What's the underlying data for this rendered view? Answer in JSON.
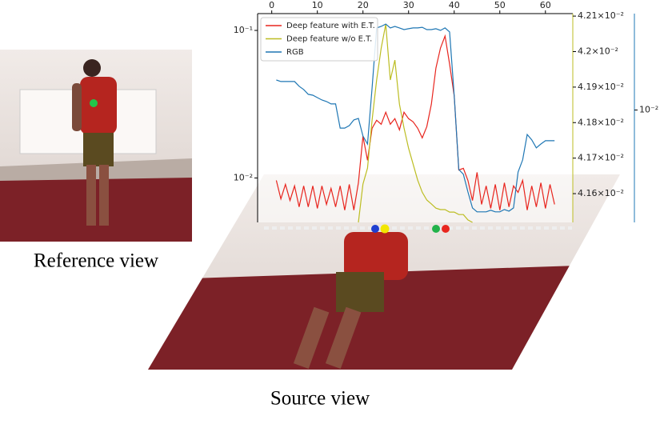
{
  "figure": {
    "reference_caption": "Reference view",
    "source_caption": "Source view"
  },
  "chart_data": {
    "type": "line",
    "legend": "upper left",
    "log_y": true,
    "log_y3": true,
    "x": [
      1,
      2,
      3,
      4,
      5,
      6,
      7,
      8,
      9,
      10,
      11,
      12,
      13,
      14,
      15,
      16,
      17,
      18,
      19,
      20,
      21,
      22,
      23,
      24,
      25,
      26,
      27,
      28,
      29,
      30,
      31,
      32,
      33,
      34,
      35,
      36,
      37,
      38,
      39,
      40,
      41,
      42,
      43,
      44,
      45,
      46,
      47,
      48,
      49,
      50,
      51,
      52,
      53,
      54,
      55,
      56,
      57,
      58,
      59,
      60,
      61,
      62
    ],
    "xlim": [
      -3.1,
      66
    ],
    "xticks": [
      0,
      10,
      20,
      30,
      40,
      50,
      60
    ],
    "ylim": [
      0.005,
      0.13
    ],
    "yticks": [
      {
        "value": 0.1,
        "label": "10⁻¹"
      },
      {
        "value": 0.01,
        "label": "10⁻²"
      }
    ],
    "y2lim": [
      0.041519,
      0.042107
    ],
    "y2ticks": [
      {
        "value": 0.0416,
        "label": "4.16×10⁻²"
      },
      {
        "value": 0.0417,
        "label": "4.17×10⁻²"
      },
      {
        "value": 0.0418,
        "label": "4.18×10⁻²"
      },
      {
        "value": 0.0419,
        "label": "4.19×10⁻²"
      },
      {
        "value": 0.042,
        "label": "4.2×10⁻²"
      },
      {
        "value": 0.0421,
        "label": "4.21×10⁻²"
      }
    ],
    "y3lim": [
      0.0095,
      0.01045
    ],
    "y3ticks": [
      {
        "value": 0.01,
        "label": "10⁻²"
      }
    ],
    "series": [
      {
        "name": "Deep feature with E.T.",
        "color": "#e8251e",
        "axis": "y",
        "values": [
          0.00963,
          0.00722,
          0.00905,
          0.00704,
          0.00883,
          0.00637,
          0.00883,
          0.00637,
          0.00883,
          0.00622,
          0.00883,
          0.00662,
          0.0085,
          0.00637,
          0.00883,
          0.00606,
          0.00905,
          0.00606,
          0.00928,
          0.01917,
          0.01317,
          0.02173,
          0.02462,
          0.02312,
          0.0279,
          0.02312,
          0.02525,
          0.02119,
          0.0279,
          0.02525,
          0.02401,
          0.02173,
          0.01869,
          0.02228,
          0.03162,
          0.05553,
          0.07596,
          0.09162,
          0.0591,
          0.03583,
          0.01133,
          0.01162,
          0.00963,
          0.00704,
          0.01091,
          0.00662,
          0.00883,
          0.00622,
          0.00905,
          0.00606,
          0.00928,
          0.00637,
          0.00883,
          0.00798,
          0.00963,
          0.00606,
          0.00883,
          0.00637,
          0.00928,
          0.00622,
          0.00905,
          0.00662
        ]
      },
      {
        "name": "Deep feature w/o E.T.",
        "color": "#bcbd22",
        "axis": "y2",
        "values": [
          null,
          null,
          null,
          null,
          null,
          null,
          null,
          null,
          null,
          null,
          null,
          null,
          null,
          null,
          null,
          null,
          null,
          null,
          0.041519,
          0.041627,
          0.041672,
          0.041807,
          0.04192,
          0.04201,
          0.042077,
          0.04192,
          0.041976,
          0.041852,
          0.041785,
          0.041728,
          0.041683,
          0.041638,
          0.041604,
          0.041582,
          0.041571,
          0.041559,
          0.041555,
          0.041555,
          0.041548,
          0.041548,
          0.041541,
          0.041541,
          0.041526,
          0.041519,
          null,
          null,
          null,
          null,
          null,
          null,
          null,
          null,
          null,
          null,
          null,
          null,
          null,
          null,
          null,
          null,
          null,
          null
        ]
      },
      {
        "name": "RGB",
        "color": "#1f77b4",
        "axis": "y3",
        "values": [
          0.010138,
          0.010131,
          0.010131,
          0.010131,
          0.010131,
          0.010109,
          0.010094,
          0.010072,
          0.010068,
          0.010057,
          0.010046,
          0.010039,
          0.010028,
          0.010028,
          0.009918,
          0.009918,
          0.009929,
          0.009955,
          0.009962,
          0.009882,
          0.009846,
          0.010101,
          0.010382,
          0.010389,
          0.0104,
          0.010382,
          0.010389,
          0.010382,
          0.010374,
          0.010378,
          0.010382,
          0.010382,
          0.010385,
          0.010374,
          0.010374,
          0.010378,
          0.01037,
          0.010382,
          0.010363,
          0.010064,
          0.009732,
          0.009711,
          0.009633,
          0.009563,
          0.009546,
          0.009546,
          0.009546,
          0.009553,
          0.009546,
          0.009546,
          0.009556,
          0.009549,
          0.009563,
          0.009721,
          0.009775,
          0.009889,
          0.009865,
          0.009829,
          0.009846,
          0.009861,
          0.009861,
          0.009861
        ]
      }
    ]
  }
}
